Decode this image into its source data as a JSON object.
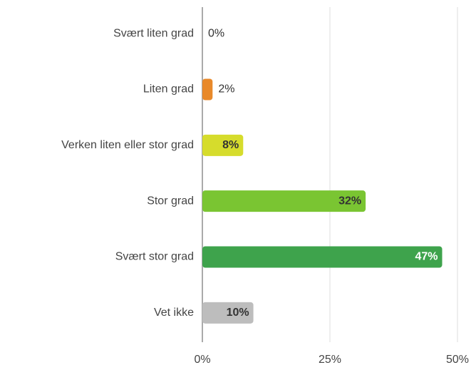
{
  "chart_data": {
    "type": "barh",
    "categories": [
      "Svært liten grad",
      "Liten grad",
      "Verken liten eller stor grad",
      "Stor grad",
      "Svært stor grad",
      "Vet ikke"
    ],
    "values": [
      0,
      2,
      8,
      32,
      47,
      10
    ],
    "value_labels": [
      "0%",
      "2%",
      "8%",
      "32%",
      "47%",
      "10%"
    ],
    "colors": [
      "#e8892a",
      "#e8892a",
      "#d6dc2c",
      "#7ac532",
      "#3ea34c",
      "#bdbdbd"
    ],
    "xlim": [
      0,
      50
    ],
    "xticks": [
      {
        "value": 0,
        "label": "0%"
      },
      {
        "value": 25,
        "label": "25%"
      },
      {
        "value": 50,
        "label": "50%"
      }
    ],
    "grid": true
  }
}
